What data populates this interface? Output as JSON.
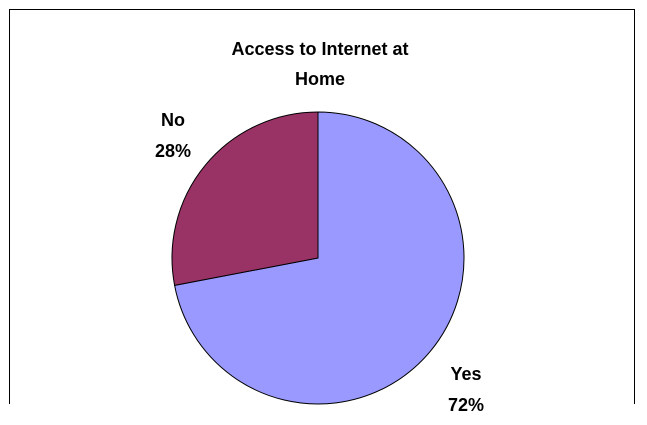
{
  "chart_data": {
    "type": "pie",
    "title": "Access to Internet at Home",
    "title_lines": [
      "Access to Internet at",
      "Home"
    ],
    "slices": [
      {
        "label": "Yes",
        "percent_label": "72%",
        "value": 72,
        "color": "#9999ff"
      },
      {
        "label": "No",
        "percent_label": "28%",
        "value": 28,
        "color": "#993366"
      }
    ],
    "legend": "none",
    "border_color": "#000000"
  }
}
